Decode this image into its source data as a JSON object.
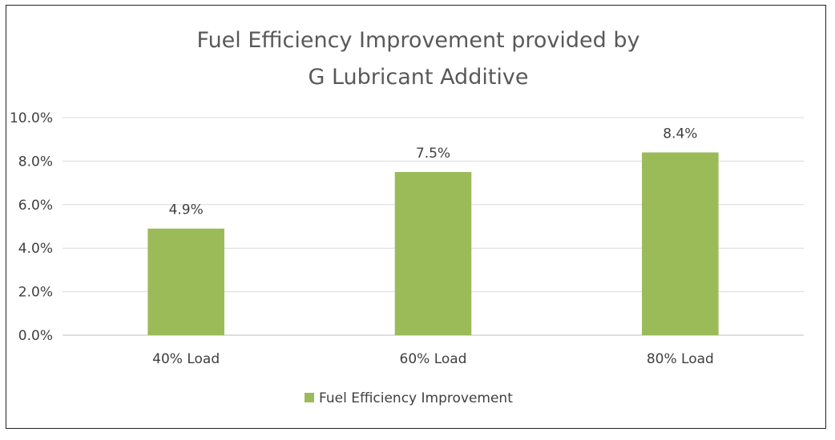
{
  "chart_data": {
    "type": "bar",
    "title": "Fuel Efficiency Improvement provided by G Lubricant Additive",
    "title_lines": [
      "Fuel Efficiency Improvement provided by",
      "G Lubricant Additive"
    ],
    "categories": [
      "40% Load",
      "60% Load",
      "80% Load"
    ],
    "series": [
      {
        "name": "Fuel Efficiency Improvement",
        "values": [
          4.9,
          7.5,
          8.4
        ],
        "color": "#9bbb59"
      }
    ],
    "data_labels": [
      "4.9%",
      "7.5%",
      "8.4%"
    ],
    "ylim": [
      0,
      10
    ],
    "yticks": [
      0,
      2,
      4,
      6,
      8,
      10
    ],
    "ytick_labels": [
      "0.0%",
      "2.0%",
      "4.0%",
      "6.0%",
      "8.0%",
      "10.0%"
    ],
    "grid": true,
    "legend_position": "bottom",
    "xlabel": "",
    "ylabel": ""
  }
}
